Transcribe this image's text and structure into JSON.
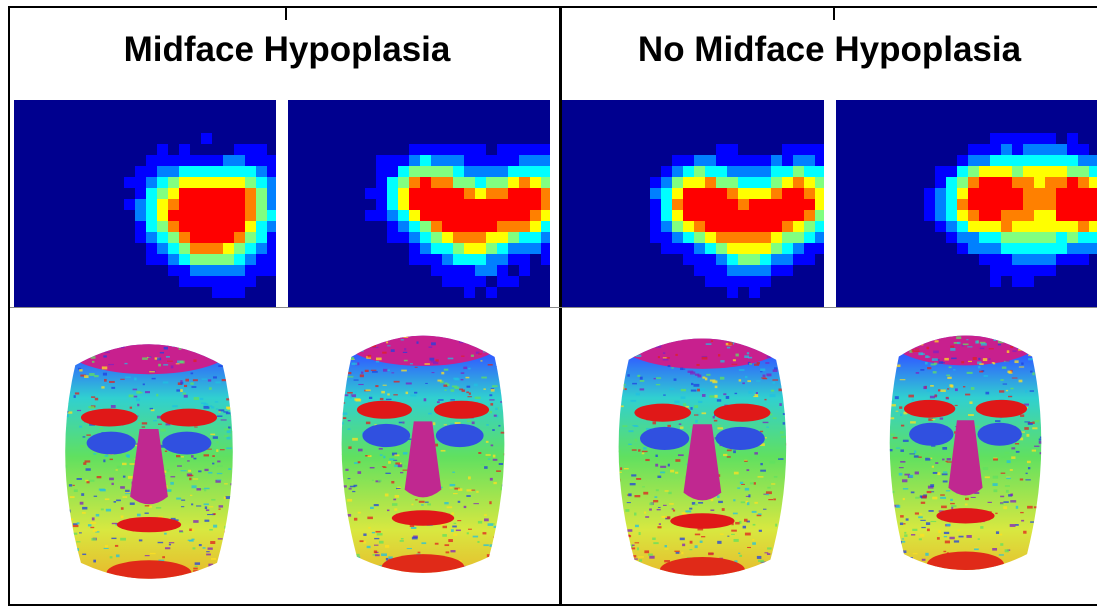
{
  "figure": {
    "group_titles": [
      "Midface Hypoplasia",
      "No Midface Hypoplasia"
    ],
    "heatmap_colormap": [
      "#00008f",
      "#0000ff",
      "#0080ff",
      "#00ffff",
      "#80ff80",
      "#ffff00",
      "#ff8000",
      "#ff0000"
    ],
    "panels": [
      {
        "group": "Midface Hypoplasia",
        "heatmap_icon": "hotspot-heatmap",
        "face_icon": "3d-face-curvature-map"
      },
      {
        "group": "Midface Hypoplasia",
        "heatmap_icon": "hotspot-heatmap",
        "face_icon": "3d-face-curvature-map"
      },
      {
        "group": "No Midface Hypoplasia",
        "heatmap_icon": "hotspot-heatmap",
        "face_icon": "3d-face-curvature-map"
      },
      {
        "group": "No Midface Hypoplasia",
        "heatmap_icon": "hotspot-heatmap",
        "face_icon": "3d-face-curvature-map"
      }
    ]
  }
}
